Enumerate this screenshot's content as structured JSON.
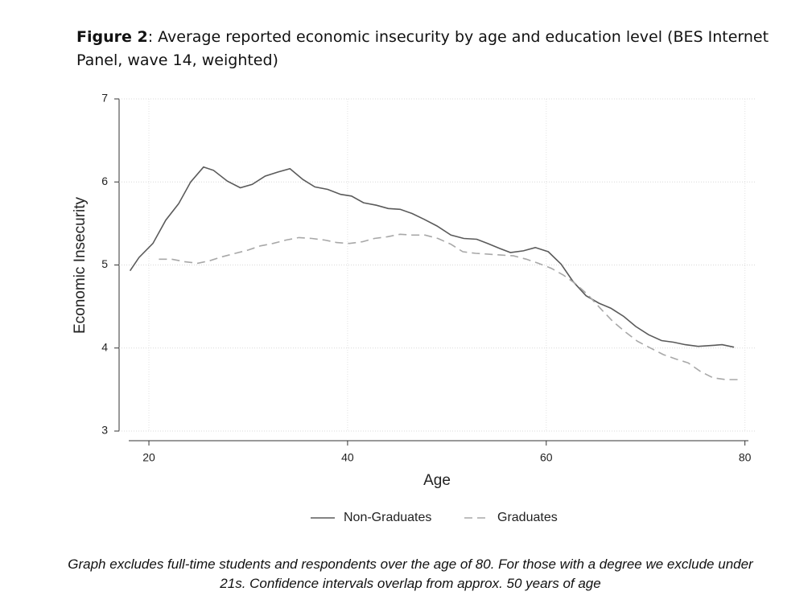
{
  "chart_data": {
    "type": "line",
    "title_prefix": "Figure 2",
    "title": ": Average reported economic insecurity by age and education level (BES Internet Panel, wave 14, weighted)",
    "x_label": "Age",
    "y_label": "Economic Insecurity",
    "xlim": [
      17,
      81
    ],
    "xticks": [
      20,
      40,
      60,
      80
    ],
    "ylim": [
      3,
      7
    ],
    "yticks": [
      3,
      4,
      5,
      6,
      7
    ],
    "grid": true,
    "legend": "bottom",
    "series": [
      {
        "name": "Non-Graduates",
        "color": "#5a5a5a",
        "dash": "solid",
        "x": [
          18.1,
          19.0,
          20.4,
          21.7,
          23.0,
          24.2,
          25.5,
          26.5,
          27.9,
          29.2,
          30.4,
          31.7,
          33.0,
          34.2,
          35.5,
          36.7,
          38.0,
          39.3,
          40.4,
          41.6,
          42.9,
          44.1,
          45.3,
          46.5,
          47.7,
          49.0,
          50.4,
          51.7,
          53.0,
          54.1,
          55.3,
          56.4,
          57.7,
          58.9,
          60.2,
          61.5,
          62.7,
          64.0,
          65.3,
          66.5,
          67.8,
          69.0,
          70.3,
          71.6,
          72.8,
          74.0,
          75.3,
          76.5,
          77.7,
          78.9
        ],
        "values": [
          4.93,
          5.09,
          5.26,
          5.54,
          5.74,
          6.0,
          6.18,
          6.14,
          6.01,
          5.93,
          5.97,
          6.07,
          6.12,
          6.16,
          6.03,
          5.94,
          5.91,
          5.85,
          5.83,
          5.75,
          5.72,
          5.68,
          5.67,
          5.62,
          5.55,
          5.47,
          5.36,
          5.32,
          5.31,
          5.26,
          5.2,
          5.15,
          5.17,
          5.21,
          5.16,
          5.01,
          4.8,
          4.63,
          4.54,
          4.48,
          4.38,
          4.26,
          4.16,
          4.09,
          4.07,
          4.04,
          4.02,
          4.03,
          4.04,
          4.01
        ]
      },
      {
        "name": "Graduates",
        "color": "#a8a8a8",
        "dash": "dashed",
        "x": [
          21.0,
          22.3,
          23.6,
          24.9,
          26.1,
          27.4,
          28.7,
          30.0,
          31.2,
          32.5,
          33.8,
          35.1,
          36.4,
          37.7,
          38.9,
          40.2,
          41.5,
          42.7,
          44.0,
          45.3,
          46.5,
          47.8,
          49.1,
          50.4,
          51.6,
          52.9,
          54.2,
          55.4,
          56.7,
          58.0,
          59.2,
          60.5,
          61.7,
          63.0,
          64.2,
          65.5,
          66.7,
          68.0,
          69.2,
          70.5,
          71.8,
          73.0,
          74.3,
          75.5,
          76.8,
          78.1,
          79.4
        ],
        "values": [
          5.07,
          5.07,
          5.04,
          5.02,
          5.05,
          5.1,
          5.14,
          5.18,
          5.23,
          5.26,
          5.3,
          5.33,
          5.32,
          5.3,
          5.27,
          5.26,
          5.28,
          5.32,
          5.34,
          5.37,
          5.36,
          5.36,
          5.32,
          5.25,
          5.16,
          5.14,
          5.13,
          5.12,
          5.11,
          5.07,
          5.02,
          4.96,
          4.88,
          4.77,
          4.64,
          4.47,
          4.32,
          4.19,
          4.08,
          4.0,
          3.92,
          3.87,
          3.82,
          3.72,
          3.64,
          3.62,
          3.62
        ]
      }
    ],
    "note": "Graph excludes full-time students and respondents over the age of 80. For those with a degree we exclude under 21s. Confidence intervals overlap from approx. 50 years of age"
  }
}
